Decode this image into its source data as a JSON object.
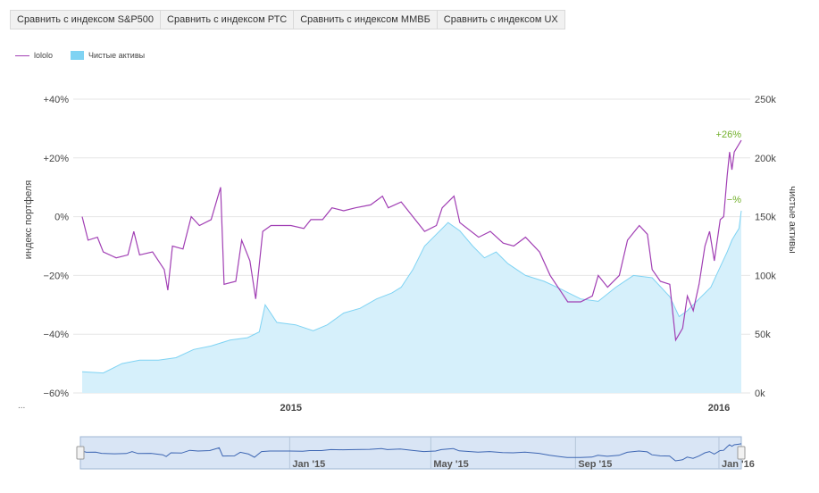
{
  "compare_buttons": [
    "Сравнить с индексом S&P500",
    "Сравнить с индексом РТС",
    "Сравнить с индексом ММВБ",
    "Сравнить с индексом UX"
  ],
  "legend": {
    "series1": "lololo",
    "series2": "Чистые активы"
  },
  "overflow_dots": "...",
  "colors": {
    "portfolio": "#a13fb4",
    "assets_fill": "#d6f0fb",
    "assets_line": "#7fd3f3",
    "positive": "#72b02b",
    "grid": "#e6e6e6"
  },
  "chart_data": {
    "type": "line",
    "x_range": [
      "2014-07-07",
      "2016-01-20"
    ],
    "x_ticks": [
      {
        "label": "2015",
        "date": "2015-01-01"
      },
      {
        "label": "2016",
        "date": "2016-01-01"
      }
    ],
    "y_left": {
      "label": "индекс портфеля",
      "range": [
        -60,
        40
      ],
      "ticks": [
        40,
        20,
        0,
        -20,
        -40,
        -60
      ],
      "tick_labels": [
        "+40%",
        "+20%",
        "0%",
        "−20%",
        "−40%",
        "−60%"
      ]
    },
    "y_right": {
      "label": "чистые активы",
      "range": [
        0,
        250000
      ],
      "ticks": [
        250000,
        200000,
        150000,
        100000,
        50000,
        0
      ],
      "tick_labels": [
        "250k",
        "200k",
        "150k",
        "100k",
        "50k",
        "0k"
      ]
    },
    "annotations": [
      {
        "text": "+26%",
        "series": "lololo"
      },
      {
        "text": "−%",
        "series": "Чистые активы"
      }
    ],
    "series": [
      {
        "name": "lololo",
        "axis": "left",
        "type": "line",
        "points": [
          [
            "2014-07-07",
            0
          ],
          [
            "2014-07-12",
            -8
          ],
          [
            "2014-07-20",
            -7
          ],
          [
            "2014-07-25",
            -12
          ],
          [
            "2014-08-05",
            -14
          ],
          [
            "2014-08-15",
            -13
          ],
          [
            "2014-08-20",
            -5
          ],
          [
            "2014-08-25",
            -13
          ],
          [
            "2014-09-05",
            -12
          ],
          [
            "2014-09-15",
            -18
          ],
          [
            "2014-09-18",
            -25
          ],
          [
            "2014-09-22",
            -10
          ],
          [
            "2014-10-01",
            -11
          ],
          [
            "2014-10-08",
            0
          ],
          [
            "2014-10-15",
            -3
          ],
          [
            "2014-10-25",
            -1
          ],
          [
            "2014-11-02",
            10
          ],
          [
            "2014-11-05",
            -23
          ],
          [
            "2014-11-15",
            -22
          ],
          [
            "2014-11-20",
            -8
          ],
          [
            "2014-11-27",
            -15
          ],
          [
            "2014-12-02",
            -28
          ],
          [
            "2014-12-08",
            -5
          ],
          [
            "2014-12-15",
            -3
          ],
          [
            "2015-01-01",
            -3
          ],
          [
            "2015-01-12",
            -4
          ],
          [
            "2015-01-18",
            -1
          ],
          [
            "2015-01-28",
            -1
          ],
          [
            "2015-02-05",
            3
          ],
          [
            "2015-02-15",
            2
          ],
          [
            "2015-02-25",
            3
          ],
          [
            "2015-03-10",
            4
          ],
          [
            "2015-03-20",
            7
          ],
          [
            "2015-03-25",
            3
          ],
          [
            "2015-04-05",
            5
          ],
          [
            "2015-04-15",
            0
          ],
          [
            "2015-04-25",
            -5
          ],
          [
            "2015-05-05",
            -3
          ],
          [
            "2015-05-10",
            3
          ],
          [
            "2015-05-20",
            7
          ],
          [
            "2015-05-25",
            -2
          ],
          [
            "2015-06-10",
            -7
          ],
          [
            "2015-06-20",
            -5
          ],
          [
            "2015-07-01",
            -9
          ],
          [
            "2015-07-10",
            -10
          ],
          [
            "2015-07-20",
            -7
          ],
          [
            "2015-08-01",
            -12
          ],
          [
            "2015-08-10",
            -20
          ],
          [
            "2015-08-20",
            -26
          ],
          [
            "2015-08-25",
            -29
          ],
          [
            "2015-09-05",
            -29
          ],
          [
            "2015-09-15",
            -27
          ],
          [
            "2015-09-20",
            -20
          ],
          [
            "2015-09-28",
            -24
          ],
          [
            "2015-10-08",
            -20
          ],
          [
            "2015-10-15",
            -8
          ],
          [
            "2015-10-25",
            -3
          ],
          [
            "2015-11-01",
            -6
          ],
          [
            "2015-11-05",
            -18
          ],
          [
            "2015-11-12",
            -22
          ],
          [
            "2015-11-20",
            -23
          ],
          [
            "2015-11-25",
            -42
          ],
          [
            "2015-12-01",
            -38
          ],
          [
            "2015-12-05",
            -27
          ],
          [
            "2015-12-10",
            -32
          ],
          [
            "2015-12-15",
            -23
          ],
          [
            "2015-12-20",
            -10
          ],
          [
            "2015-12-24",
            -5
          ],
          [
            "2015-12-28",
            -15
          ],
          [
            "2016-01-02",
            -1
          ],
          [
            "2016-01-05",
            0
          ],
          [
            "2016-01-08",
            14
          ],
          [
            "2016-01-10",
            22
          ],
          [
            "2016-01-12",
            16
          ],
          [
            "2016-01-14",
            22
          ],
          [
            "2016-01-17",
            24
          ],
          [
            "2016-01-20",
            26
          ]
        ]
      },
      {
        "name": "Чистые активы",
        "axis": "right",
        "type": "area",
        "points": [
          [
            "2014-07-07",
            18000
          ],
          [
            "2014-07-25",
            17000
          ],
          [
            "2014-08-10",
            25000
          ],
          [
            "2014-08-25",
            28000
          ],
          [
            "2014-09-10",
            28000
          ],
          [
            "2014-09-25",
            30000
          ],
          [
            "2014-10-10",
            37000
          ],
          [
            "2014-10-25",
            40000
          ],
          [
            "2014-11-10",
            45000
          ],
          [
            "2014-11-25",
            47000
          ],
          [
            "2014-12-05",
            52000
          ],
          [
            "2014-12-10",
            75000
          ],
          [
            "2014-12-20",
            60000
          ],
          [
            "2015-01-05",
            58000
          ],
          [
            "2015-01-20",
            53000
          ],
          [
            "2015-02-01",
            58000
          ],
          [
            "2015-02-15",
            68000
          ],
          [
            "2015-03-01",
            72000
          ],
          [
            "2015-03-15",
            80000
          ],
          [
            "2015-03-28",
            85000
          ],
          [
            "2015-04-05",
            90000
          ],
          [
            "2015-04-15",
            105000
          ],
          [
            "2015-04-25",
            125000
          ],
          [
            "2015-05-05",
            135000
          ],
          [
            "2015-05-15",
            145000
          ],
          [
            "2015-05-25",
            138000
          ],
          [
            "2015-06-05",
            125000
          ],
          [
            "2015-06-15",
            115000
          ],
          [
            "2015-06-25",
            120000
          ],
          [
            "2015-07-05",
            110000
          ],
          [
            "2015-07-20",
            100000
          ],
          [
            "2015-08-05",
            95000
          ],
          [
            "2015-08-20",
            88000
          ],
          [
            "2015-09-05",
            80000
          ],
          [
            "2015-09-20",
            78000
          ],
          [
            "2015-10-05",
            90000
          ],
          [
            "2015-10-20",
            100000
          ],
          [
            "2015-11-05",
            98000
          ],
          [
            "2015-11-20",
            82000
          ],
          [
            "2015-11-28",
            65000
          ],
          [
            "2015-12-05",
            70000
          ],
          [
            "2015-12-15",
            80000
          ],
          [
            "2015-12-25",
            90000
          ],
          [
            "2016-01-01",
            105000
          ],
          [
            "2016-01-08",
            120000
          ],
          [
            "2016-01-12",
            130000
          ],
          [
            "2016-01-15",
            135000
          ],
          [
            "2016-01-18",
            140000
          ],
          [
            "2016-01-20",
            155000
          ]
        ]
      }
    ],
    "navigator": {
      "x_ticks": [
        {
          "label": "Jan '15",
          "date": "2015-01-01"
        },
        {
          "label": "May '15",
          "date": "2015-05-01"
        },
        {
          "label": "Sep '15",
          "date": "2015-09-01"
        },
        {
          "label": "Jan '16",
          "date": "2016-01-01"
        }
      ]
    }
  }
}
